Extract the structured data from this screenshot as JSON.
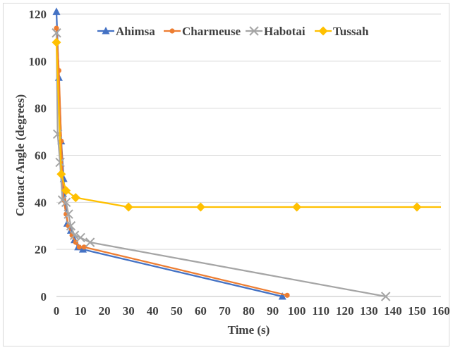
{
  "chart_data": {
    "type": "scatter",
    "title": "",
    "xlabel": "Time (s)",
    "ylabel": "Contact Angle (degrees)",
    "xlim": [
      0,
      160
    ],
    "ylim": [
      0,
      120
    ],
    "xticks": [
      0,
      10,
      20,
      30,
      40,
      50,
      60,
      70,
      80,
      90,
      100,
      110,
      120,
      130,
      140,
      150,
      160
    ],
    "yticks": [
      0,
      20,
      40,
      60,
      80,
      100,
      120
    ],
    "grid": "horizontal",
    "legend": "top",
    "series": [
      {
        "name": "Ahimsa",
        "color": "#4472c4",
        "marker": "triangle",
        "x": [
          0,
          1,
          2,
          3,
          4.5,
          6,
          7.5,
          9,
          11,
          94
        ],
        "y": [
          121,
          93,
          66,
          50,
          31,
          28,
          24,
          21,
          20,
          0
        ]
      },
      {
        "name": "Charmeuse",
        "color": "#ed7d31",
        "marker": "circle",
        "x": [
          0,
          1,
          2,
          3,
          4,
          5,
          6.5,
          8,
          9.5,
          11.5,
          96
        ],
        "y": [
          114,
          96,
          66,
          41,
          35,
          30,
          26,
          23,
          21,
          21,
          0.5
        ]
      },
      {
        "name": "Habotai",
        "color": "#a5a5a5",
        "marker": "x",
        "x": [
          0,
          0.5,
          1.5,
          2.5,
          4,
          5,
          6,
          7.5,
          10,
          14,
          137
        ],
        "y": [
          112,
          69,
          57,
          41,
          40,
          35,
          30,
          26,
          25,
          23,
          0
        ]
      },
      {
        "name": "Tussah",
        "color": "#ffc000",
        "marker": "diamond",
        "x": [
          0,
          2,
          4,
          8,
          30,
          60,
          100,
          150,
          162
        ],
        "y": [
          108,
          52,
          45,
          42,
          38,
          38,
          38,
          38,
          38
        ]
      }
    ]
  }
}
